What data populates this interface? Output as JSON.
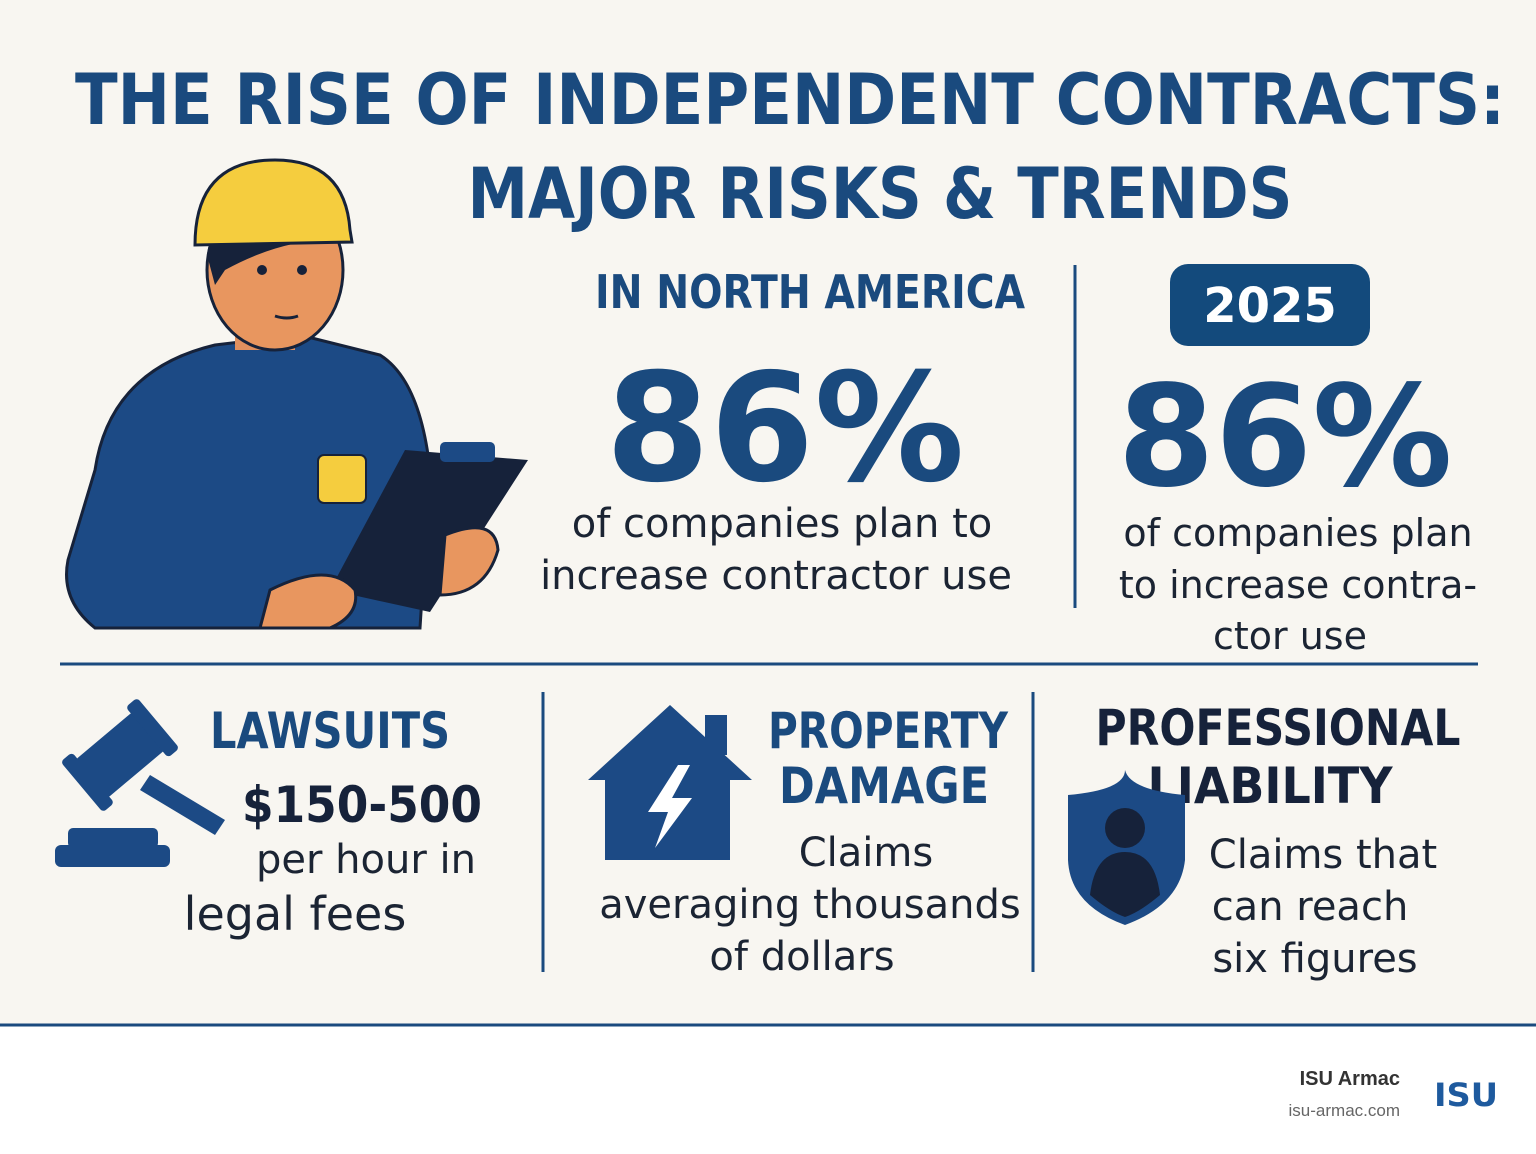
{
  "header": {
    "title": [
      "THE RISE OF INDEPENDENT CONTRACTS:",
      "MAJOR RISKS & TRENDS"
    ]
  },
  "stats": [
    {
      "label": "IN NORTH AMERICA",
      "value": "86%",
      "description": [
        "of companies plan to",
        "increase contractor use"
      ]
    },
    {
      "label": "2025",
      "value": "86%",
      "description": [
        "of companies plan",
        "to increase contra-",
        "ctor use"
      ]
    }
  ],
  "risks": [
    {
      "title": [
        "LAWSUITS"
      ],
      "figure": "$150-500",
      "description": [
        "per hour in",
        "legal fees"
      ]
    },
    {
      "title": [
        "PROPERTY",
        "DAMAGE"
      ],
      "description": [
        "Claims",
        "averaging thousands",
        "of dollars"
      ]
    },
    {
      "title": [
        "PROFESSIONAL",
        "LIABILITY"
      ],
      "description": [
        "Claims that",
        "can reach",
        "six figures"
      ]
    }
  ],
  "footer": {
    "brand": "ISU Armac",
    "url": "isu-armac.com",
    "logo": "ISU"
  }
}
